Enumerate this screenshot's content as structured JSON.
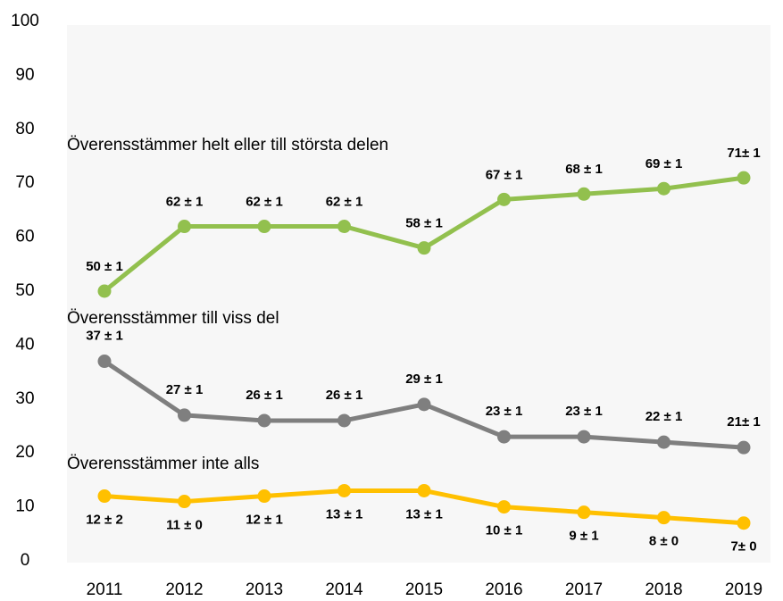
{
  "chart_data": {
    "type": "line",
    "categories": [
      "2011",
      "2012",
      "2013",
      "2014",
      "2015",
      "2016",
      "2017",
      "2018",
      "2019"
    ],
    "series": [
      {
        "name": "Överensstämmer helt eller till största delen",
        "color": "#92c04e",
        "values": [
          50,
          62,
          62,
          62,
          58,
          67,
          68,
          69,
          71
        ],
        "value_labels": [
          "50 ± 1",
          "62 ± 1",
          "62 ± 1",
          "62 ± 1",
          "58 ± 1",
          "67 ± 1",
          "68 ± 1",
          "69 ± 1",
          "71± 1"
        ]
      },
      {
        "name": "Överensstämmer till viss del",
        "color": "#7f7f7f",
        "values": [
          37,
          27,
          26,
          26,
          29,
          23,
          23,
          22,
          21
        ],
        "value_labels": [
          "37 ± 1",
          "27 ± 1",
          "26 ± 1",
          "26 ± 1",
          "29 ± 1",
          "23 ± 1",
          "23 ± 1",
          "22 ± 1",
          "21± 1"
        ]
      },
      {
        "name": "Överensstämmer inte alls",
        "color": "#ffc000",
        "values": [
          12,
          11,
          12,
          13,
          13,
          10,
          9,
          8,
          7
        ],
        "value_labels": [
          "12 ± 2",
          "11 ± 0",
          "12 ± 1",
          "13 ± 1",
          "13 ± 1",
          "10 ± 1",
          "9 ± 1",
          "8 ± 0",
          "7± 0"
        ]
      }
    ],
    "ylim": [
      0,
      100
    ],
    "yticks": [
      0,
      10,
      20,
      30,
      40,
      50,
      60,
      70,
      80,
      90,
      100
    ],
    "grid": false
  }
}
